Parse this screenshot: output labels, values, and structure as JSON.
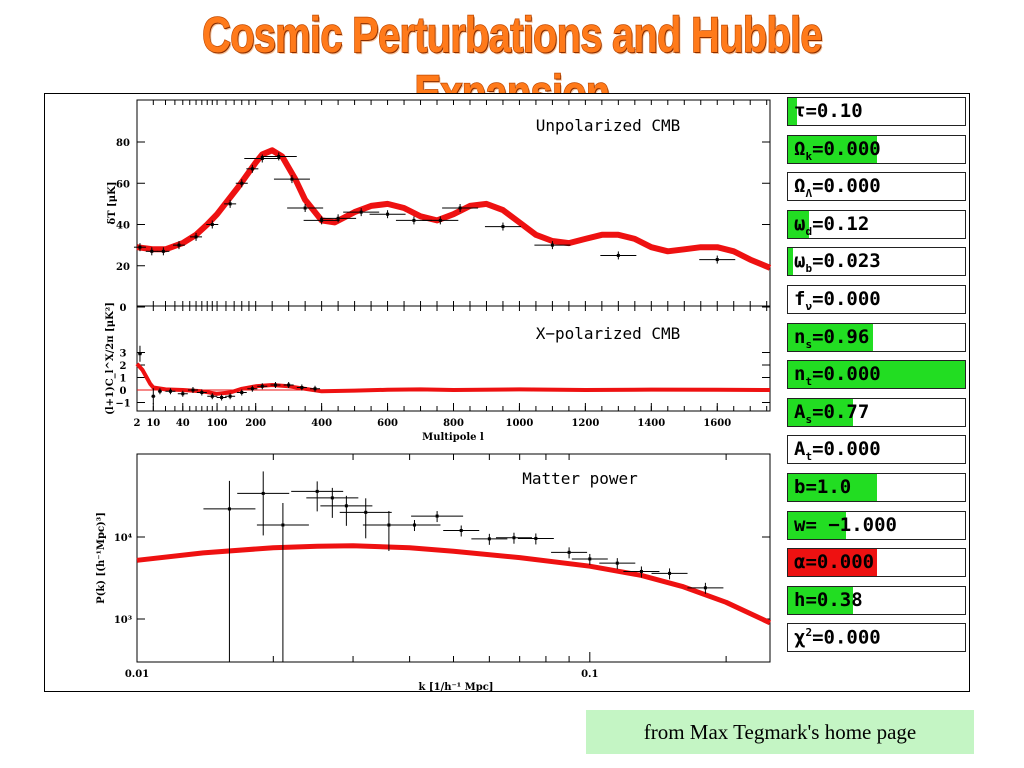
{
  "slide": {
    "title": "Cosmic Perturbations and Hubble Expansion",
    "footer": "from Max Tegmark's home page",
    "colors": {
      "title": "#ff7a1a",
      "fit_curve": "#ee1111",
      "slider_green": "#22dd22",
      "slider_red": "#ee1111",
      "footer_bg": "#c4f5c4"
    }
  },
  "params": [
    {
      "symbol": "τ",
      "sub": "",
      "eq": "=",
      "value": "0.10",
      "fill": 0.05,
      "color": "#22dd22"
    },
    {
      "symbol": "Ω",
      "sub": "k",
      "eq": "=",
      "value": "0.000",
      "fill": 0.5,
      "color": "#22dd22"
    },
    {
      "symbol": "Ω",
      "sub": "Λ",
      "eq": "=",
      "value": "0.000",
      "fill": 0.0,
      "color": "#22dd22"
    },
    {
      "symbol": "ω",
      "sub": "d",
      "eq": "=",
      "value": "0.12",
      "fill": 0.12,
      "color": "#22dd22"
    },
    {
      "symbol": "ω",
      "sub": "b",
      "eq": "=",
      "value": "0.023",
      "fill": 0.03,
      "color": "#22dd22"
    },
    {
      "symbol": "f",
      "sub": "ν",
      "eq": "=",
      "value": "0.000",
      "fill": 0.0,
      "color": "#22dd22"
    },
    {
      "symbol": "n",
      "sub": "s",
      "eq": "=",
      "value": "0.96",
      "fill": 0.48,
      "color": "#22dd22"
    },
    {
      "symbol": "n",
      "sub": "t",
      "eq": "=",
      "value": "0.000",
      "fill": 1.0,
      "color": "#22dd22"
    },
    {
      "symbol": "A",
      "sub": "s",
      "eq": "=",
      "value": "0.77",
      "fill": 0.37,
      "color": "#22dd22"
    },
    {
      "symbol": "A",
      "sub": "t",
      "eq": "=",
      "value": "0.000",
      "fill": 0.0,
      "color": "#22dd22"
    },
    {
      "symbol": "b",
      "sub": "",
      "eq": "=",
      "value": "1.0",
      "fill": 0.5,
      "color": "#22dd22"
    },
    {
      "symbol": "w",
      "sub": "",
      "eq": "= −",
      "value": "1.000",
      "fill": 0.33,
      "color": "#22dd22"
    },
    {
      "symbol": "α",
      "sub": "",
      "eq": "=",
      "value": "0.000",
      "fill": 0.5,
      "color": "#ee1111"
    },
    {
      "symbol": "h",
      "sub": "",
      "eq": "=",
      "value": "0.38",
      "fill": 0.37,
      "color": "#22dd22"
    },
    {
      "symbol": "χ",
      "sub": "",
      "sup": "2",
      "eq": "=",
      "value": "0.000",
      "fill": 0.0,
      "color": "#22dd22"
    }
  ],
  "chart_data": [
    {
      "type": "line",
      "title": "Unpolarized CMB",
      "ylabel": "δT [μK]",
      "ylim": [
        0,
        90
      ],
      "yticks": [
        "0",
        "20",
        "40",
        "60",
        "80"
      ],
      "ytick_values": [
        0,
        20,
        40,
        60,
        80
      ],
      "x_scale": "sqrt-then-linear",
      "series": [
        {
          "role": "model",
          "points": [
            [
              2,
              29
            ],
            [
              10,
              28
            ],
            [
              20,
              28
            ],
            [
              40,
              31
            ],
            [
              60,
              35
            ],
            [
              80,
              40
            ],
            [
              100,
              45
            ],
            [
              150,
              58
            ],
            [
              200,
              70
            ],
            [
              220,
              74
            ],
            [
              250,
              76
            ],
            [
              280,
              73
            ],
            [
              320,
              62
            ],
            [
              350,
              52
            ],
            [
              400,
              42
            ],
            [
              440,
              41
            ],
            [
              500,
              46
            ],
            [
              550,
              49
            ],
            [
              600,
              50
            ],
            [
              650,
              48
            ],
            [
              700,
              44
            ],
            [
              750,
              42
            ],
            [
              800,
              45
            ],
            [
              850,
              49
            ],
            [
              900,
              50
            ],
            [
              950,
              47
            ],
            [
              1000,
              41
            ],
            [
              1050,
              35
            ],
            [
              1100,
              32
            ],
            [
              1150,
              31
            ],
            [
              1200,
              33
            ],
            [
              1250,
              35
            ],
            [
              1300,
              35
            ],
            [
              1350,
              33
            ],
            [
              1400,
              29
            ],
            [
              1450,
              27
            ],
            [
              1500,
              28
            ],
            [
              1550,
              29
            ],
            [
              1600,
              29
            ],
            [
              1650,
              27
            ],
            [
              1700,
              23
            ],
            [
              1760,
              19
            ]
          ]
        },
        {
          "role": "data",
          "points": [
            [
              3,
              29
            ],
            [
              9,
              27
            ],
            [
              18,
              27
            ],
            [
              35,
              30
            ],
            [
              60,
              34
            ],
            [
              90,
              40
            ],
            [
              130,
              50
            ],
            [
              160,
              60
            ],
            [
              190,
              67
            ],
            [
              220,
              72
            ],
            [
              270,
              73
            ],
            [
              310,
              62
            ],
            [
              350,
              48
            ],
            [
              400,
              42
            ],
            [
              450,
              43
            ],
            [
              520,
              46
            ],
            [
              600,
              45
            ],
            [
              680,
              42
            ],
            [
              760,
              42
            ],
            [
              820,
              48
            ],
            [
              950,
              39
            ],
            [
              1100,
              30
            ],
            [
              1300,
              25
            ],
            [
              1600,
              23
            ]
          ]
        }
      ]
    },
    {
      "type": "line",
      "title": "X−polarized CMB",
      "ylabel": "(l+1)C_l^X/2π [μK²]",
      "xlabel": "Multipole l",
      "ylim": [
        -1,
        3.5
      ],
      "yticks": [
        "−1",
        "0",
        "1",
        "2",
        "3"
      ],
      "ytick_values": [
        -1,
        0,
        1,
        2,
        3
      ],
      "xticks": [
        "2",
        "10",
        "40",
        "100",
        "200",
        "400",
        "600",
        "800",
        "1000",
        "1200",
        "1400",
        "1600"
      ],
      "xtick_values": [
        2,
        10,
        40,
        100,
        200,
        400,
        600,
        800,
        1000,
        1200,
        1400,
        1600
      ],
      "series": [
        {
          "role": "model",
          "points": [
            [
              2,
              2.1
            ],
            [
              4,
              1.6
            ],
            [
              6,
              1.0
            ],
            [
              8,
              0.5
            ],
            [
              10,
              0.2
            ],
            [
              20,
              0.05
            ],
            [
              40,
              0.0
            ],
            [
              70,
              -0.1
            ],
            [
              100,
              -0.3
            ],
            [
              130,
              -0.2
            ],
            [
              160,
              0.1
            ],
            [
              200,
              0.3
            ],
            [
              250,
              0.4
            ],
            [
              300,
              0.3
            ],
            [
              350,
              0.1
            ],
            [
              400,
              -0.1
            ],
            [
              500,
              -0.05
            ],
            [
              600,
              0.02
            ],
            [
              700,
              0.05
            ],
            [
              800,
              0.0
            ],
            [
              1000,
              0.05
            ],
            [
              1200,
              0.0
            ],
            [
              1400,
              0.03
            ],
            [
              1600,
              0.02
            ],
            [
              1760,
              0.0
            ]
          ]
        },
        {
          "role": "data",
          "points": [
            [
              3,
              2.9
            ],
            [
              10,
              -0.5
            ],
            [
              15,
              -0.1
            ],
            [
              25,
              -0.1
            ],
            [
              40,
              -0.3
            ],
            [
              55,
              0.0
            ],
            [
              70,
              -0.2
            ],
            [
              90,
              -0.5
            ],
            [
              110,
              -0.6
            ],
            [
              130,
              -0.5
            ],
            [
              160,
              -0.2
            ],
            [
              190,
              0.1
            ],
            [
              220,
              0.3
            ],
            [
              260,
              0.4
            ],
            [
              300,
              0.4
            ],
            [
              340,
              0.2
            ],
            [
              380,
              0.1
            ]
          ]
        }
      ]
    },
    {
      "type": "line",
      "title": "Matter power",
      "ylabel": "P(k) [(h⁻¹Mpc)³]",
      "xlabel": "k [1/h⁻¹ Mpc]",
      "x_scale": "log",
      "y_scale": "log",
      "xlim": [
        0.01,
        0.25
      ],
      "ylim": [
        650,
        70000
      ],
      "xticks": [
        "0.01",
        "0.1"
      ],
      "xtick_values": [
        0.01,
        0.1
      ],
      "yticks": [
        "10³",
        "10⁴"
      ],
      "ytick_values": [
        1000,
        10000
      ],
      "series": [
        {
          "role": "model",
          "points": [
            [
              0.01,
              5200
            ],
            [
              0.014,
              6400
            ],
            [
              0.02,
              7400
            ],
            [
              0.025,
              7700
            ],
            [
              0.03,
              7800
            ],
            [
              0.04,
              7400
            ],
            [
              0.05,
              6700
            ],
            [
              0.07,
              5600
            ],
            [
              0.1,
              4400
            ],
            [
              0.13,
              3400
            ],
            [
              0.16,
              2500
            ],
            [
              0.2,
              1600
            ],
            [
              0.25,
              900
            ]
          ]
        },
        {
          "role": "data",
          "points": [
            [
              0.016,
              22000
            ],
            [
              0.019,
              34000
            ],
            [
              0.021,
              14000
            ],
            [
              0.025,
              36000
            ],
            [
              0.027,
              30000
            ],
            [
              0.029,
              24000
            ],
            [
              0.032,
              20000
            ],
            [
              0.036,
              14000
            ],
            [
              0.041,
              14000
            ],
            [
              0.046,
              18000
            ],
            [
              0.052,
              12000
            ],
            [
              0.06,
              9500
            ],
            [
              0.068,
              9800
            ],
            [
              0.076,
              9600
            ],
            [
              0.09,
              6500
            ],
            [
              0.1,
              5400
            ],
            [
              0.115,
              4800
            ],
            [
              0.13,
              3800
            ],
            [
              0.15,
              3600
            ],
            [
              0.18,
              2400
            ]
          ]
        }
      ]
    }
  ]
}
